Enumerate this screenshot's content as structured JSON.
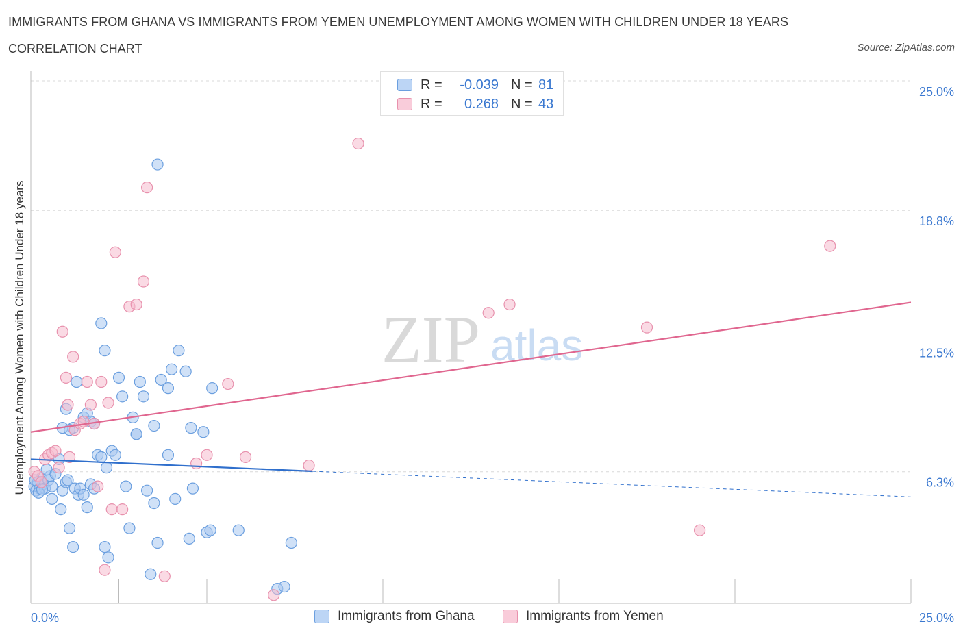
{
  "title": "IMMIGRANTS FROM GHANA VS IMMIGRANTS FROM YEMEN UNEMPLOYMENT AMONG WOMEN WITH CHILDREN UNDER 18 YEARS",
  "subtitle": "CORRELATION CHART",
  "source": "Source: ZipAtlas.com",
  "watermark": {
    "zip": "ZIP",
    "atlas": "atlas"
  },
  "legend": {
    "ghana": {
      "r_label": "R =",
      "r_value": "-0.039",
      "n_label": "N =",
      "n_value": "81"
    },
    "yemen": {
      "r_label": "R =",
      "r_value": "0.268",
      "n_label": "N =",
      "n_value": "43"
    }
  },
  "colors": {
    "ghana_fill": "#a9c8f0",
    "ghana_stroke": "#6b9fdf",
    "ghana_line": "#2f6fcc",
    "yemen_fill": "#f6bccd",
    "yemen_stroke": "#e891ad",
    "yemen_line": "#e0668f",
    "tick_text": "#3a78d0",
    "grid": "#d8d8d8"
  },
  "chart_data": {
    "type": "scatter",
    "title": "IMMIGRANTS FROM GHANA VS IMMIGRANTS FROM YEMEN UNEMPLOYMENT AMONG WOMEN WITH CHILDREN UNDER 18 YEARS",
    "xlabel": "",
    "ylabel": "Unemployment Among Women with Children Under 18 years",
    "xlim": [
      0,
      25
    ],
    "ylim": [
      0,
      25
    ],
    "x_tick_labels": [
      "0.0%",
      "25.0%"
    ],
    "y_ticks": [
      {
        "value": 6.3,
        "label": "6.3%"
      },
      {
        "value": 12.5,
        "label": "12.5%"
      },
      {
        "value": 18.8,
        "label": "18.8%"
      },
      {
        "value": 25.0,
        "label": "25.0%"
      }
    ],
    "grid": true,
    "legend_position": "top-center",
    "series": [
      {
        "name": "Immigrants from Ghana",
        "trend": {
          "x0": 0,
          "y0": 6.9,
          "x1": 25,
          "y1": 5.1,
          "solid_until": 8.0
        },
        "points": [
          [
            0.1,
            5.6
          ],
          [
            0.15,
            5.4
          ],
          [
            0.2,
            5.8
          ],
          [
            0.25,
            5.5
          ],
          [
            0.3,
            6.0
          ],
          [
            0.35,
            5.7
          ],
          [
            0.4,
            5.5
          ],
          [
            0.5,
            5.9
          ],
          [
            0.55,
            6.1
          ],
          [
            0.6,
            5.6
          ],
          [
            0.12,
            5.9
          ],
          [
            0.22,
            5.3
          ],
          [
            0.32,
            5.45
          ],
          [
            0.45,
            6.4
          ],
          [
            0.7,
            6.2
          ],
          [
            0.8,
            6.9
          ],
          [
            0.6,
            5.0
          ],
          [
            0.85,
            4.5
          ],
          [
            0.9,
            5.4
          ],
          [
            1.0,
            5.8
          ],
          [
            1.05,
            5.9
          ],
          [
            1.1,
            3.6
          ],
          [
            1.2,
            2.7
          ],
          [
            1.25,
            5.5
          ],
          [
            1.35,
            5.2
          ],
          [
            1.4,
            5.5
          ],
          [
            1.5,
            5.2
          ],
          [
            1.6,
            4.6
          ],
          [
            1.7,
            5.7
          ],
          [
            1.8,
            5.5
          ],
          [
            1.3,
            10.6
          ],
          [
            1.5,
            8.9
          ],
          [
            1.6,
            9.1
          ],
          [
            1.7,
            8.7
          ],
          [
            1.8,
            8.6
          ],
          [
            1.9,
            7.1
          ],
          [
            2.0,
            7.0
          ],
          [
            2.1,
            2.7
          ],
          [
            2.15,
            6.5
          ],
          [
            2.2,
            2.2
          ],
          [
            2.3,
            7.3
          ],
          [
            2.4,
            7.1
          ],
          [
            2.5,
            10.8
          ],
          [
            2.6,
            9.9
          ],
          [
            2.7,
            5.6
          ],
          [
            2.8,
            3.6
          ],
          [
            2.9,
            8.9
          ],
          [
            3.0,
            8.1
          ],
          [
            3.1,
            10.6
          ],
          [
            3.2,
            9.9
          ],
          [
            3.3,
            5.4
          ],
          [
            3.4,
            1.4
          ],
          [
            3.5,
            4.8
          ],
          [
            3.6,
            2.9
          ],
          [
            3.7,
            10.7
          ],
          [
            3.9,
            10.3
          ],
          [
            4.0,
            11.2
          ],
          [
            4.1,
            5.0
          ],
          [
            4.2,
            12.1
          ],
          [
            4.4,
            11.1
          ],
          [
            4.5,
            3.1
          ],
          [
            4.55,
            8.4
          ],
          [
            4.6,
            5.5
          ],
          [
            4.9,
            8.2
          ],
          [
            5.0,
            3.4
          ],
          [
            5.1,
            3.5
          ],
          [
            5.15,
            10.3
          ],
          [
            5.9,
            3.5
          ],
          [
            7.0,
            0.7
          ],
          [
            7.2,
            0.8
          ],
          [
            7.4,
            2.9
          ],
          [
            2.1,
            12.1
          ],
          [
            3.6,
            21.0
          ],
          [
            2.0,
            13.4
          ],
          [
            1.0,
            9.3
          ],
          [
            1.2,
            8.4
          ],
          [
            3.0,
            8.1
          ],
          [
            3.5,
            8.5
          ],
          [
            0.9,
            8.4
          ],
          [
            3.9,
            7.1
          ],
          [
            1.1,
            8.3
          ]
        ]
      },
      {
        "name": "Immigrants from Yemen",
        "trend": {
          "x0": 0,
          "y0": 8.2,
          "x1": 25,
          "y1": 14.4
        },
        "points": [
          [
            0.1,
            6.3
          ],
          [
            0.2,
            6.1
          ],
          [
            0.3,
            5.8
          ],
          [
            0.4,
            6.9
          ],
          [
            0.5,
            7.1
          ],
          [
            0.6,
            7.2
          ],
          [
            0.7,
            7.3
          ],
          [
            0.8,
            6.5
          ],
          [
            0.9,
            13.0
          ],
          [
            1.0,
            10.8
          ],
          [
            1.05,
            9.5
          ],
          [
            1.1,
            7.0
          ],
          [
            1.2,
            11.8
          ],
          [
            1.25,
            8.3
          ],
          [
            1.4,
            8.6
          ],
          [
            1.5,
            8.7
          ],
          [
            1.6,
            10.6
          ],
          [
            1.7,
            9.5
          ],
          [
            1.8,
            8.6
          ],
          [
            1.9,
            5.6
          ],
          [
            2.0,
            10.6
          ],
          [
            2.1,
            1.6
          ],
          [
            2.2,
            9.6
          ],
          [
            2.3,
            4.5
          ],
          [
            2.4,
            16.8
          ],
          [
            2.6,
            4.5
          ],
          [
            2.8,
            14.2
          ],
          [
            3.0,
            14.3
          ],
          [
            3.2,
            15.4
          ],
          [
            3.3,
            19.9
          ],
          [
            3.8,
            1.3
          ],
          [
            4.7,
            6.7
          ],
          [
            5.0,
            7.1
          ],
          [
            5.6,
            10.5
          ],
          [
            6.1,
            7.0
          ],
          [
            6.9,
            0.4
          ],
          [
            7.9,
            6.6
          ],
          [
            9.3,
            22.0
          ],
          [
            13.0,
            13.9
          ],
          [
            13.6,
            14.3
          ],
          [
            17.5,
            13.2
          ],
          [
            19.0,
            3.5
          ],
          [
            22.7,
            17.1
          ]
        ]
      }
    ]
  }
}
